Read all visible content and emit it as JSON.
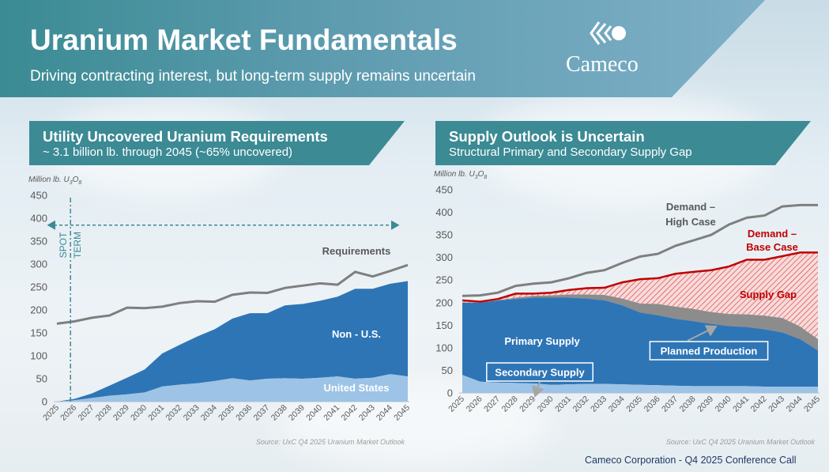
{
  "header": {
    "title": "Uranium Market Fundamentals",
    "subtitle": "Driving contracting interest, but long-term supply remains uncertain",
    "logo_text": "Cameco"
  },
  "left_panel": {
    "title": "Utility Uncovered Uranium Requirements",
    "subtitle": "~ 3.1 billion lb. through 2045 (~65% uncovered)"
  },
  "right_panel": {
    "title": "Supply Outlook is Uncertain",
    "subtitle": "Structural Primary and Secondary Supply Gap"
  },
  "footer": "Cameco Corporation  - Q4 2025 Conference Call",
  "colors": {
    "dark_blue": "#2e75b6",
    "light_blue": "#9dc3e6",
    "gray_line": "#7f7f7f",
    "red": "#c00000",
    "header_teal": "#3b8a94"
  },
  "chart_data": [
    {
      "type": "area",
      "unit_label": "Million lb. U3O8",
      "source": "Source: UxC Q4 2025 Uranium Market Outlook",
      "x": [
        "2025",
        "2026",
        "2027",
        "2028",
        "2029",
        "2030",
        "2031",
        "2032",
        "2033",
        "2034",
        "2035",
        "2036",
        "2037",
        "2038",
        "2039",
        "2040",
        "2041",
        "2042",
        "2043",
        "2044",
        "2045"
      ],
      "ylim": [
        0,
        450
      ],
      "yticks": [
        0,
        50,
        100,
        150,
        200,
        250,
        300,
        350,
        400,
        450
      ],
      "series": [
        {
          "name": "United States",
          "kind": "area",
          "values": [
            0,
            3,
            8,
            13,
            16,
            20,
            33,
            37,
            40,
            45,
            51,
            46,
            50,
            51,
            50,
            52,
            55,
            50,
            52,
            60,
            55
          ]
        },
        {
          "name": "Non - U.S.",
          "kind": "area",
          "values": [
            0,
            3,
            10,
            22,
            36,
            50,
            72,
            87,
            102,
            113,
            130,
            147,
            143,
            159,
            163,
            168,
            174,
            196,
            194,
            197,
            208
          ]
        },
        {
          "name": "Requirements",
          "kind": "line",
          "values": [
            170,
            175,
            183,
            188,
            205,
            204,
            207,
            215,
            219,
            218,
            233,
            238,
            237,
            248,
            253,
            258,
            255,
            283,
            273,
            285,
            298
          ]
        }
      ],
      "annotations": {
        "spot_label": "SPOT",
        "term_label": "TERM",
        "divider_year": "2026",
        "arrow_level": 385
      }
    },
    {
      "type": "area",
      "unit_label": "Million lb. U3O8",
      "source": "Source: UxC Q4 2025 Uranium Market Outlook",
      "x": [
        "2025",
        "2026",
        "2027",
        "2028",
        "2029",
        "2030",
        "2031",
        "2032",
        "2033",
        "2034",
        "2035",
        "2036",
        "2037",
        "2038",
        "2039",
        "2040",
        "2041",
        "2042",
        "2043",
        "2044",
        "2045"
      ],
      "ylim": [
        0,
        450
      ],
      "yticks": [
        0,
        50,
        100,
        150,
        200,
        250,
        300,
        350,
        400,
        450
      ],
      "series": [
        {
          "name": "Secondary Supply",
          "kind": "area",
          "values": [
            40,
            25,
            23,
            22,
            21,
            18,
            19,
            20,
            20,
            19,
            18,
            17,
            16,
            15,
            15,
            15,
            15,
            14,
            14,
            14,
            14
          ]
        },
        {
          "name": "Primary Supply",
          "kind": "area",
          "values": [
            160,
            175,
            182,
            186,
            190,
            193,
            192,
            189,
            185,
            175,
            160,
            155,
            148,
            144,
            138,
            133,
            131,
            127,
            120,
            105,
            80
          ]
        },
        {
          "name": "Planned Production",
          "kind": "area",
          "values": [
            0,
            0,
            0,
            3,
            4,
            5,
            7,
            9,
            12,
            15,
            20,
            25,
            27,
            27,
            26,
            27,
            28,
            30,
            32,
            28,
            25
          ]
        },
        {
          "name": "Demand – Base Case",
          "kind": "line",
          "values": [
            205,
            202,
            208,
            220,
            220,
            222,
            228,
            232,
            233,
            245,
            252,
            254,
            264,
            268,
            272,
            280,
            295,
            295,
            303,
            311,
            311
          ]
        },
        {
          "name": "Demand – High Case",
          "kind": "line",
          "values": [
            215,
            216,
            222,
            237,
            242,
            245,
            254,
            266,
            272,
            288,
            302,
            308,
            326,
            338,
            350,
            373,
            388,
            393,
            413,
            416,
            416
          ]
        }
      ],
      "labels": {
        "high_case": [
          "Demand –",
          "High Case"
        ],
        "base_case": [
          "Demand –",
          "Base Case"
        ],
        "supply_gap": "Supply Gap",
        "primary_supply": "Primary Supply",
        "planned_production": "Planned Production",
        "secondary_supply": "Secondary Supply"
      }
    }
  ]
}
